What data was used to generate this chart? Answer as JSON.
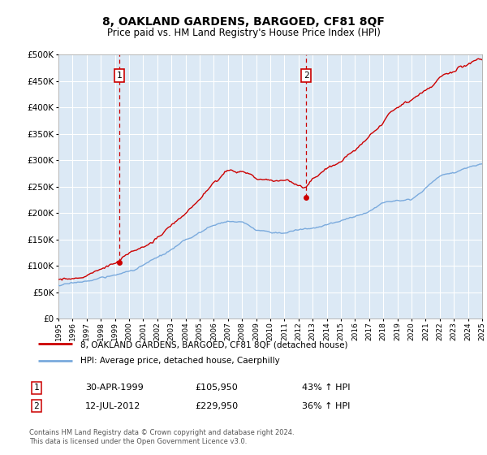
{
  "title": "8, OAKLAND GARDENS, BARGOED, CF81 8QF",
  "subtitle": "Price paid vs. HM Land Registry's House Price Index (HPI)",
  "legend_line1": "8, OAKLAND GARDENS, BARGOED, CF81 8QF (detached house)",
  "legend_line2": "HPI: Average price, detached house, Caerphilly",
  "footer": "Contains HM Land Registry data © Crown copyright and database right 2024.\nThis data is licensed under the Open Government Licence v3.0.",
  "annotation1_label": "1",
  "annotation1_date": "30-APR-1999",
  "annotation1_price": "£105,950",
  "annotation1_hpi": "43% ↑ HPI",
  "annotation2_label": "2",
  "annotation2_date": "12-JUL-2012",
  "annotation2_price": "£229,950",
  "annotation2_hpi": "36% ↑ HPI",
  "red_color": "#cc0000",
  "blue_color": "#7aaadd",
  "plot_bg": "#dce9f5",
  "grid_color": "#ffffff",
  "ylim": [
    0,
    500000
  ],
  "yticks": [
    0,
    50000,
    100000,
    150000,
    200000,
    250000,
    300000,
    350000,
    400000,
    450000,
    500000
  ],
  "sale1_year": 1999.33,
  "sale1_price": 105950,
  "sale2_year": 2012.54,
  "sale2_price": 229950,
  "xmin": 1995,
  "xmax": 2025
}
